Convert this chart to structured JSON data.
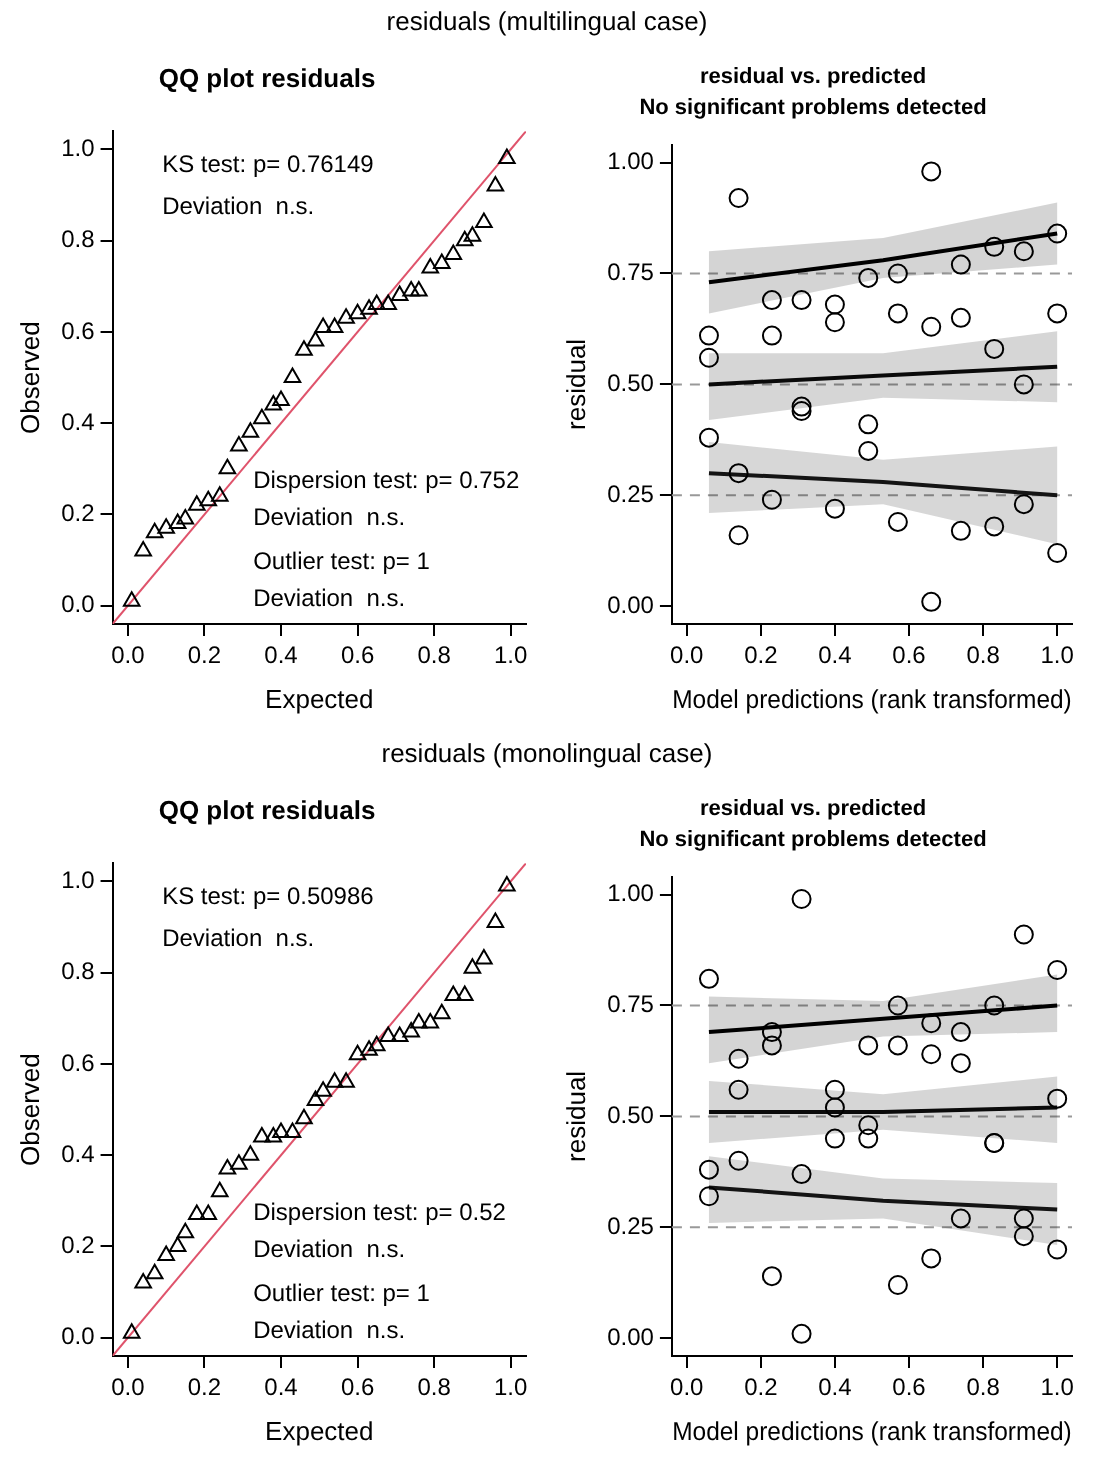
{
  "chart_data": [
    {
      "type": "scatter",
      "title": "residuals (multilingual case)",
      "subtitle": "QQ plot residuals",
      "xlabel": "Expected",
      "ylabel": "Observed",
      "xlim": [
        -0.04,
        1.04
      ],
      "ylim": [
        -0.04,
        1.04
      ],
      "xticks": [
        {
          "value": 0,
          "label": "0.0"
        },
        {
          "value": 0.2,
          "label": "0.2"
        },
        {
          "value": 0.4,
          "label": "0.4"
        },
        {
          "value": 0.6,
          "label": "0.6"
        },
        {
          "value": 0.8,
          "label": "0.8"
        },
        {
          "value": 1,
          "label": "1.0"
        }
      ],
      "yticks": [
        {
          "value": 0,
          "label": "0.0"
        },
        {
          "value": 0.2,
          "label": "0.2"
        },
        {
          "value": 0.4,
          "label": "0.4"
        },
        {
          "value": 0.6,
          "label": "0.6"
        },
        {
          "value": 0.8,
          "label": "0.8"
        },
        {
          "value": 1,
          "label": "1.0"
        }
      ],
      "grid": false,
      "legend": false,
      "annotations": [
        "KS test: p= 0.76149",
        "Deviation  n.s.",
        "Dispersion test: p= 0.752",
        "Deviation  n.s.",
        "Outlier test: p= 1",
        "Deviation  n.s."
      ],
      "series": [
        {
          "type": "line",
          "marker": "none",
          "color": "#df536b",
          "x": [
            -0.04,
            1.04
          ],
          "values": [
            -0.04,
            1.04
          ]
        },
        {
          "type": "scatter",
          "marker": "triangle",
          "color": "#000000",
          "x": [
            0.01,
            0.04,
            0.07,
            0.1,
            0.13,
            0.15,
            0.18,
            0.21,
            0.24,
            0.26,
            0.29,
            0.32,
            0.35,
            0.38,
            0.4,
            0.43,
            0.46,
            0.49,
            0.51,
            0.54,
            0.57,
            0.6,
            0.63,
            0.65,
            0.68,
            0.71,
            0.74,
            0.76,
            0.79,
            0.82,
            0.85,
            0.88,
            0.9,
            0.93,
            0.96,
            0.99
          ],
          "values": [
            0.01,
            0.12,
            0.16,
            0.17,
            0.18,
            0.19,
            0.22,
            0.23,
            0.24,
            0.3,
            0.35,
            0.38,
            0.41,
            0.44,
            0.45,
            0.5,
            0.56,
            0.58,
            0.61,
            0.61,
            0.63,
            0.64,
            0.65,
            0.66,
            0.66,
            0.68,
            0.69,
            0.69,
            0.74,
            0.75,
            0.77,
            0.8,
            0.81,
            0.84,
            0.92,
            0.98
          ]
        }
      ]
    },
    {
      "type": "scatter",
      "title": "residual vs. predicted",
      "subtitle": "No significant problems detected",
      "xlabel": "Model predictions (rank transformed)",
      "ylabel": "residual",
      "xlim": [
        -0.04,
        1.04
      ],
      "ylim": [
        -0.04,
        1.04
      ],
      "xticks": [
        {
          "value": 0,
          "label": "0.0"
        },
        {
          "value": 0.2,
          "label": "0.2"
        },
        {
          "value": 0.4,
          "label": "0.4"
        },
        {
          "value": 0.6,
          "label": "0.6"
        },
        {
          "value": 0.8,
          "label": "0.8"
        },
        {
          "value": 1,
          "label": "1.0"
        }
      ],
      "yticks": [
        {
          "value": 0,
          "label": "0.00"
        },
        {
          "value": 0.25,
          "label": "0.25"
        },
        {
          "value": 0.5,
          "label": "0.50"
        },
        {
          "value": 0.75,
          "label": "0.75"
        },
        {
          "value": 1,
          "label": "1.00"
        }
      ],
      "grid": false,
      "legend": false,
      "ref_lines": [
        {
          "axis": "y",
          "value": 0.25,
          "color": "#999999",
          "line_style": "dashed"
        },
        {
          "axis": "y",
          "value": 0.5,
          "color": "#999999",
          "line_style": "dashed"
        },
        {
          "axis": "y",
          "value": 0.75,
          "color": "#999999",
          "line_style": "dashed"
        }
      ],
      "series": [
        {
          "type": "line",
          "marker": "none",
          "color": "#000000",
          "x": [
            0.06,
            0.53,
            1.0
          ],
          "values": [
            0.73,
            0.78,
            0.84
          ],
          "lower": [
            0.66,
            0.74,
            0.77
          ],
          "upper": [
            0.8,
            0.83,
            0.91
          ]
        },
        {
          "type": "line",
          "marker": "none",
          "color": "#0a0a0a",
          "x": [
            0.06,
            0.53,
            1.0
          ],
          "values": [
            0.5,
            0.52,
            0.54
          ],
          "lower": [
            0.42,
            0.47,
            0.46
          ],
          "upper": [
            0.57,
            0.57,
            0.62
          ]
        },
        {
          "type": "line",
          "marker": "none",
          "color": "#141414",
          "x": [
            0.06,
            0.53,
            1.0
          ],
          "values": [
            0.3,
            0.28,
            0.25
          ],
          "lower": [
            0.21,
            0.23,
            0.14
          ],
          "upper": [
            0.37,
            0.33,
            0.36
          ]
        },
        {
          "type": "scatter",
          "marker": "circle",
          "color": "#000000",
          "x": [
            0.06,
            0.06,
            0.06,
            0.14,
            0.14,
            0.14,
            0.23,
            0.23,
            0.23,
            0.31,
            0.31,
            0.31,
            0.4,
            0.4,
            0.4,
            0.49,
            0.49,
            0.49,
            0.57,
            0.57,
            0.57,
            0.66,
            0.66,
            0.66,
            0.74,
            0.74,
            0.74,
            0.83,
            0.83,
            0.83,
            0.91,
            0.91,
            0.91,
            1.0,
            1.0,
            1.0
          ],
          "values": [
            0.61,
            0.56,
            0.38,
            0.92,
            0.3,
            0.16,
            0.69,
            0.61,
            0.24,
            0.69,
            0.45,
            0.44,
            0.68,
            0.64,
            0.22,
            0.74,
            0.41,
            0.35,
            0.75,
            0.66,
            0.19,
            0.98,
            0.63,
            0.01,
            0.77,
            0.65,
            0.17,
            0.81,
            0.58,
            0.18,
            0.8,
            0.5,
            0.23,
            0.84,
            0.66,
            0.12
          ]
        }
      ]
    },
    {
      "type": "scatter",
      "title": "residuals (monolingual case)",
      "subtitle": "QQ plot residuals",
      "xlabel": "Expected",
      "ylabel": "Observed",
      "xlim": [
        -0.04,
        1.04
      ],
      "ylim": [
        -0.04,
        1.04
      ],
      "xticks": [
        {
          "value": 0,
          "label": "0.0"
        },
        {
          "value": 0.2,
          "label": "0.2"
        },
        {
          "value": 0.4,
          "label": "0.4"
        },
        {
          "value": 0.6,
          "label": "0.6"
        },
        {
          "value": 0.8,
          "label": "0.8"
        },
        {
          "value": 1,
          "label": "1.0"
        }
      ],
      "yticks": [
        {
          "value": 0,
          "label": "0.0"
        },
        {
          "value": 0.2,
          "label": "0.2"
        },
        {
          "value": 0.4,
          "label": "0.4"
        },
        {
          "value": 0.6,
          "label": "0.6"
        },
        {
          "value": 0.8,
          "label": "0.8"
        },
        {
          "value": 1,
          "label": "1.0"
        }
      ],
      "grid": false,
      "legend": false,
      "annotations": [
        "KS test: p= 0.50986",
        "Deviation  n.s.",
        "Dispersion test: p= 0.52",
        "Deviation  n.s.",
        "Outlier test: p= 1",
        "Deviation  n.s."
      ],
      "series": [
        {
          "type": "line",
          "marker": "none",
          "color": "#df536b",
          "x": [
            -0.04,
            1.04
          ],
          "values": [
            -0.04,
            1.04
          ]
        },
        {
          "type": "scatter",
          "marker": "triangle",
          "color": "#000000",
          "x": [
            0.01,
            0.04,
            0.07,
            0.1,
            0.13,
            0.15,
            0.18,
            0.21,
            0.24,
            0.26,
            0.29,
            0.32,
            0.35,
            0.38,
            0.4,
            0.43,
            0.46,
            0.49,
            0.51,
            0.54,
            0.57,
            0.6,
            0.63,
            0.65,
            0.68,
            0.71,
            0.74,
            0.76,
            0.79,
            0.82,
            0.85,
            0.88,
            0.9,
            0.93,
            0.96,
            0.99
          ],
          "values": [
            0.01,
            0.12,
            0.14,
            0.18,
            0.2,
            0.23,
            0.27,
            0.27,
            0.32,
            0.37,
            0.38,
            0.4,
            0.44,
            0.44,
            0.45,
            0.45,
            0.48,
            0.52,
            0.54,
            0.56,
            0.56,
            0.62,
            0.63,
            0.64,
            0.66,
            0.66,
            0.67,
            0.69,
            0.69,
            0.71,
            0.75,
            0.75,
            0.81,
            0.83,
            0.91,
            0.99
          ]
        }
      ]
    },
    {
      "type": "scatter",
      "title": "residual vs. predicted",
      "subtitle": "No significant problems detected",
      "xlabel": "Model predictions (rank transformed)",
      "ylabel": "residual",
      "xlim": [
        -0.04,
        1.04
      ],
      "ylim": [
        -0.04,
        1.04
      ],
      "xticks": [
        {
          "value": 0,
          "label": "0.0"
        },
        {
          "value": 0.2,
          "label": "0.2"
        },
        {
          "value": 0.4,
          "label": "0.4"
        },
        {
          "value": 0.6,
          "label": "0.6"
        },
        {
          "value": 0.8,
          "label": "0.8"
        },
        {
          "value": 1,
          "label": "1.0"
        }
      ],
      "yticks": [
        {
          "value": 0,
          "label": "0.00"
        },
        {
          "value": 0.25,
          "label": "0.25"
        },
        {
          "value": 0.5,
          "label": "0.50"
        },
        {
          "value": 0.75,
          "label": "0.75"
        },
        {
          "value": 1,
          "label": "1.00"
        }
      ],
      "grid": false,
      "legend": false,
      "ref_lines": [
        {
          "axis": "y",
          "value": 0.25,
          "color": "#999999",
          "line_style": "dashed"
        },
        {
          "axis": "y",
          "value": 0.5,
          "color": "#999999",
          "line_style": "dashed"
        },
        {
          "axis": "y",
          "value": 0.75,
          "color": "#999999",
          "line_style": "dashed"
        }
      ],
      "series": [
        {
          "type": "line",
          "marker": "none",
          "color": "#000000",
          "x": [
            0.06,
            0.53,
            1.0
          ],
          "values": [
            0.69,
            0.72,
            0.75
          ],
          "lower": [
            0.62,
            0.68,
            0.69
          ],
          "upper": [
            0.77,
            0.76,
            0.82
          ]
        },
        {
          "type": "line",
          "marker": "none",
          "color": "#0a0a0a",
          "x": [
            0.06,
            0.53,
            1.0
          ],
          "values": [
            0.51,
            0.51,
            0.52
          ],
          "lower": [
            0.44,
            0.47,
            0.44
          ],
          "upper": [
            0.58,
            0.55,
            0.59
          ]
        },
        {
          "type": "line",
          "marker": "none",
          "color": "#141414",
          "x": [
            0.06,
            0.53,
            1.0
          ],
          "values": [
            0.34,
            0.31,
            0.29
          ],
          "lower": [
            0.26,
            0.27,
            0.21
          ],
          "upper": [
            0.41,
            0.36,
            0.35
          ]
        },
        {
          "type": "scatter",
          "marker": "circle",
          "color": "#000000",
          "x": [
            0.06,
            0.06,
            0.06,
            0.14,
            0.14,
            0.14,
            0.23,
            0.23,
            0.23,
            0.31,
            0.31,
            0.31,
            0.4,
            0.4,
            0.4,
            0.49,
            0.49,
            0.49,
            0.57,
            0.57,
            0.57,
            0.66,
            0.66,
            0.66,
            0.74,
            0.74,
            0.74,
            0.83,
            0.83,
            0.83,
            0.91,
            0.91,
            0.91,
            1.0,
            1.0,
            1.0
          ],
          "values": [
            0.81,
            0.38,
            0.32,
            0.63,
            0.56,
            0.4,
            0.69,
            0.66,
            0.14,
            0.99,
            0.37,
            0.01,
            0.56,
            0.52,
            0.45,
            0.66,
            0.48,
            0.45,
            0.75,
            0.66,
            0.12,
            0.71,
            0.64,
            0.18,
            0.69,
            0.62,
            0.27,
            0.75,
            0.44,
            0.44,
            0.91,
            0.27,
            0.23,
            0.83,
            0.54,
            0.2
          ]
        }
      ]
    }
  ]
}
